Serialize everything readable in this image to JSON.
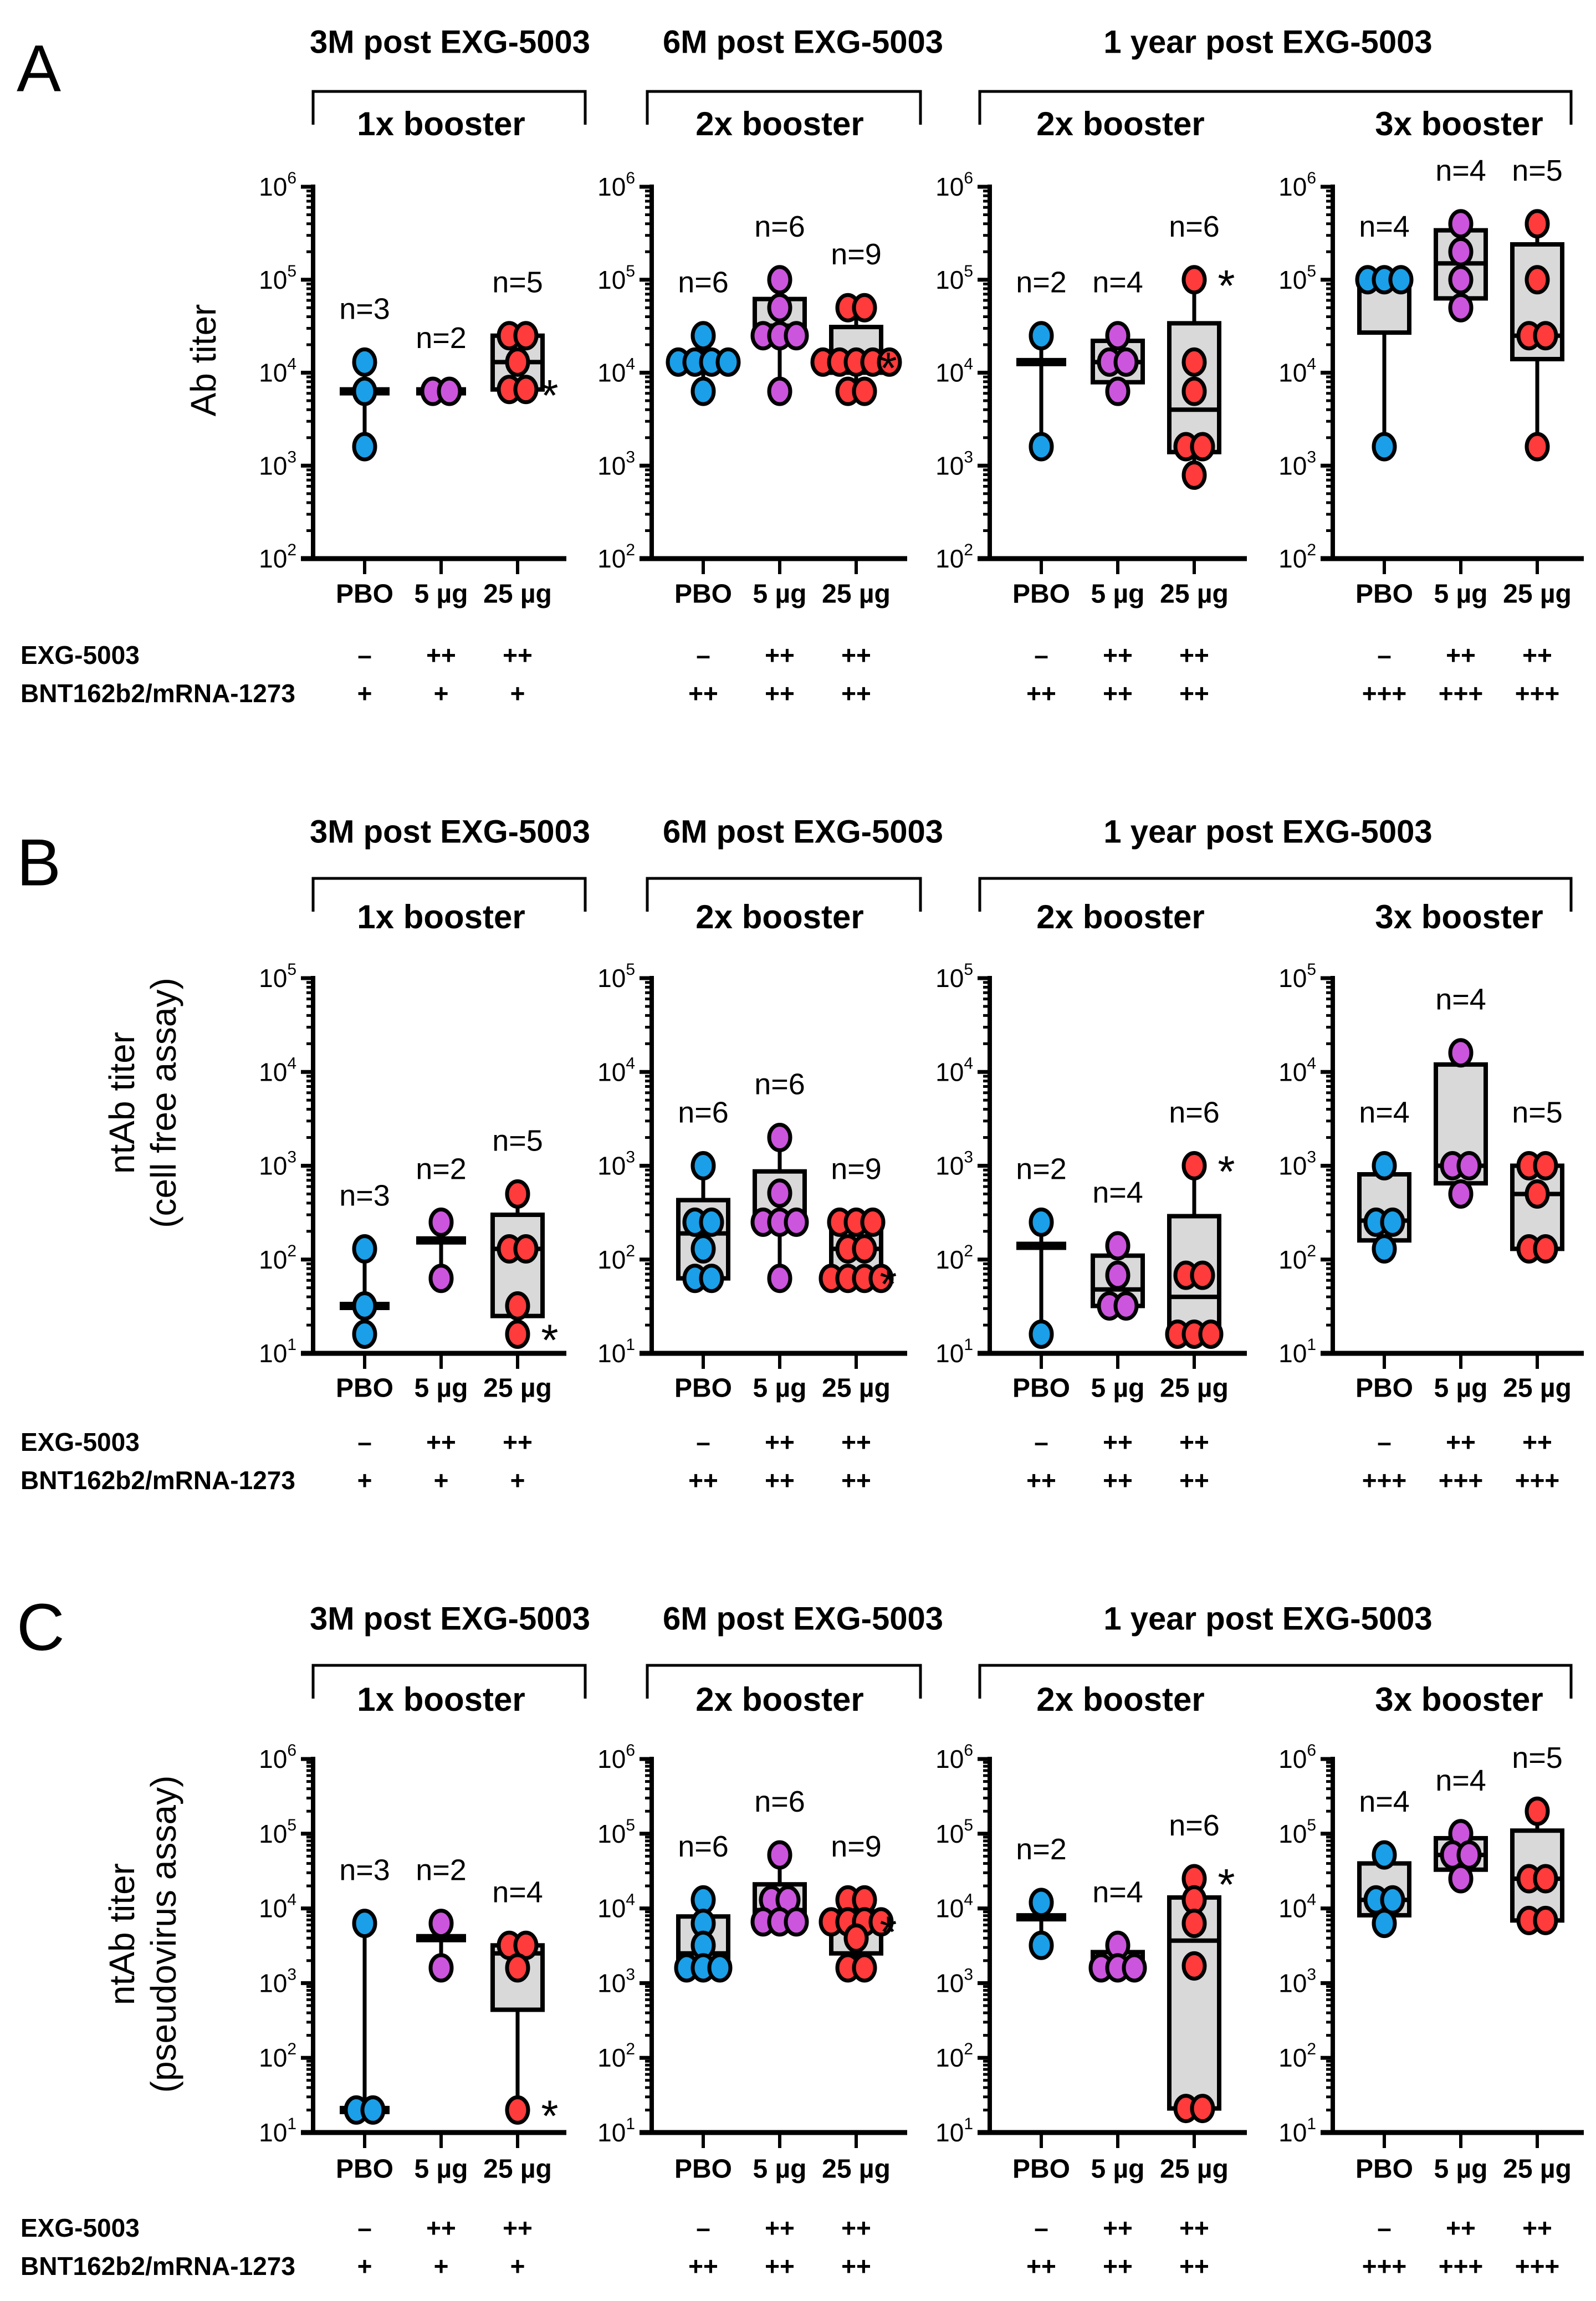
{
  "colors": {
    "PBO": "#1a9fe8",
    "5 µg": "#cc55dd",
    "25 µg": "#ff3b3b",
    "box_fill": "#d9d9d9"
  },
  "treatment_labels": [
    "EXG-5003",
    "BNT162b2/mRNA-1273"
  ],
  "rows": [
    {
      "label": "A",
      "ylabel": [
        "Ab titer"
      ],
      "headings": [
        "3M post EXG-5003",
        "6M post EXG-5003",
        "1 year post EXG-5003"
      ],
      "boosters": [
        "1x booster",
        "2x booster",
        "2x booster",
        "3x booster"
      ]
    },
    {
      "label": "B",
      "ylabel": [
        "ntAb titer",
        "(cell free assay)"
      ],
      "headings": [
        "3M post EXG-5003",
        "6M post EXG-5003",
        "1 year post EXG-5003"
      ],
      "boosters": [
        "1x booster",
        "2x booster",
        "2x booster",
        "3x booster"
      ]
    },
    {
      "label": "C",
      "ylabel": [
        "ntAb titer",
        "(pseudovirus assay)"
      ],
      "headings": [
        "3M post EXG-5003",
        "6M post EXG-5003",
        "1 year post EXG-5003"
      ],
      "boosters": [
        "1x booster",
        "2x booster",
        "2x booster",
        "3x booster"
      ]
    }
  ],
  "chart_data": [
    {
      "type": "box",
      "row": "A",
      "panel": "3M post EXG-5003 / 1x booster",
      "yscale": "log",
      "ylim": [
        100,
        1000000
      ],
      "ylabel": "Ab titer",
      "categories": [
        "PBO",
        "5 µg",
        "25 µg"
      ],
      "exg": [
        "–",
        "++",
        "++"
      ],
      "bnt": [
        "+",
        "+",
        "+"
      ],
      "groups": [
        {
          "name": "PBO",
          "n_label": "n=3",
          "values": [
            13000,
            6300,
            1600
          ],
          "median": 6300,
          "box": false
        },
        {
          "name": "5 µg",
          "n_label": "n=2",
          "values": [
            6300,
            6300
          ],
          "median": 6300,
          "box": false
        },
        {
          "name": "25 µg",
          "n_label": "n=5",
          "values": [
            25000,
            25000,
            13000,
            6600,
            6600
          ],
          "q1": 6600,
          "median": 13000,
          "q3": 25000,
          "box": true,
          "asterisk_at": 6600
        }
      ]
    },
    {
      "type": "box",
      "row": "A",
      "panel": "6M post EXG-5003 / 2x booster",
      "yscale": "log",
      "ylim": [
        100,
        1000000
      ],
      "ylabel": "Ab titer",
      "categories": [
        "PBO",
        "5 µg",
        "25 µg"
      ],
      "exg": [
        "–",
        "++",
        "++"
      ],
      "bnt": [
        "++",
        "++",
        "++"
      ],
      "groups": [
        {
          "name": "PBO",
          "n_label": "n=6",
          "values": [
            25000,
            13000,
            13000,
            13000,
            13000,
            6300
          ],
          "q1": 13000,
          "median": 13000,
          "q3": 13000,
          "box": true
        },
        {
          "name": "5 µg",
          "n_label": "n=6",
          "values": [
            100000,
            50000,
            25000,
            25000,
            25000,
            6300
          ],
          "q1": 25000,
          "median": 32000,
          "q3": 62000,
          "box": true
        },
        {
          "name": "25 µg",
          "n_label": "n=9",
          "values": [
            50000,
            50000,
            13000,
            13000,
            13000,
            13000,
            13000,
            6300,
            6300
          ],
          "q1": 10000,
          "median": 13000,
          "q3": 31000,
          "box": true,
          "asterisk_at": 13000
        }
      ]
    },
    {
      "type": "box",
      "row": "A",
      "panel": "1 year post EXG-5003 / 2x booster",
      "yscale": "log",
      "ylim": [
        100,
        1000000
      ],
      "ylabel": "Ab titer",
      "categories": [
        "PBO",
        "5 µg",
        "25 µg"
      ],
      "exg": [
        "–",
        "++",
        "++"
      ],
      "bnt": [
        "++",
        "++",
        "++"
      ],
      "groups": [
        {
          "name": "PBO",
          "n_label": "n=2",
          "values": [
            25000,
            1600
          ],
          "median": 13000,
          "box": false
        },
        {
          "name": "5 µg",
          "n_label": "n=4",
          "values": [
            25000,
            13000,
            13000,
            6300
          ],
          "q1": 7900,
          "median": 13000,
          "q3": 22000,
          "box": true
        },
        {
          "name": "25 µg",
          "n_label": "n=6",
          "values": [
            100000,
            13000,
            6300,
            1600,
            1600,
            790
          ],
          "q1": 1400,
          "median": 4000,
          "q3": 34000,
          "box": true,
          "asterisk_at": 100000
        }
      ]
    },
    {
      "type": "box",
      "row": "A",
      "panel": "1 year post EXG-5003 / 3x booster",
      "yscale": "log",
      "ylim": [
        100,
        1000000
      ],
      "ylabel": "Ab titer",
      "categories": [
        "PBO",
        "5 µg",
        "25 µg"
      ],
      "exg": [
        "–",
        "++",
        "++"
      ],
      "bnt": [
        "+++",
        "+++",
        "+++"
      ],
      "groups": [
        {
          "name": "PBO",
          "n_label": "n=4",
          "values": [
            100000,
            100000,
            100000,
            1600
          ],
          "q1": 27000,
          "median": 100000,
          "q3": 100000,
          "box": true
        },
        {
          "name": "5 µg",
          "n_label": "n=4",
          "values": [
            400000,
            200000,
            100000,
            50000
          ],
          "q1": 63000,
          "median": 150000,
          "q3": 340000,
          "box": true
        },
        {
          "name": "25 µg",
          "n_label": "n=5",
          "values": [
            400000,
            100000,
            25000,
            25000,
            1600
          ],
          "q1": 14000,
          "median": 25000,
          "q3": 240000,
          "box": true
        }
      ]
    },
    {
      "type": "box",
      "row": "B",
      "panel": "3M post EXG-5003 / 1x booster",
      "yscale": "log",
      "ylim": [
        10,
        100000
      ],
      "ylabel": "ntAb titer (cell free assay)",
      "categories": [
        "PBO",
        "5 µg",
        "25 µg"
      ],
      "exg": [
        "–",
        "++",
        "++"
      ],
      "bnt": [
        "+",
        "+",
        "+"
      ],
      "groups": [
        {
          "name": "PBO",
          "n_label": "n=3",
          "values": [
            130,
            32,
            16
          ],
          "median": 32,
          "box": false
        },
        {
          "name": "5 µg",
          "n_label": "n=2",
          "values": [
            250,
            63
          ],
          "median": 160,
          "box": false
        },
        {
          "name": "25 µg",
          "n_label": "n=5",
          "values": [
            500,
            130,
            130,
            32,
            16
          ],
          "q1": 25,
          "median": 130,
          "q3": 300,
          "box": true,
          "asterisk_at": 16
        }
      ]
    },
    {
      "type": "box",
      "row": "B",
      "panel": "6M post EXG-5003 / 2x booster",
      "yscale": "log",
      "ylim": [
        10,
        100000
      ],
      "ylabel": "ntAb titer (cell free assay)",
      "categories": [
        "PBO",
        "5 µg",
        "25 µg"
      ],
      "exg": [
        "–",
        "++",
        "++"
      ],
      "bnt": [
        "++",
        "++",
        "++"
      ],
      "groups": [
        {
          "name": "PBO",
          "n_label": "n=6",
          "values": [
            1000,
            250,
            250,
            130,
            63,
            63
          ],
          "q1": 63,
          "median": 190,
          "q3": 430,
          "box": true
        },
        {
          "name": "5 µg",
          "n_label": "n=6",
          "values": [
            2000,
            510,
            250,
            250,
            250,
            63
          ],
          "q1": 250,
          "median": 250,
          "q3": 870,
          "box": true
        },
        {
          "name": "25 µg",
          "n_label": "n=9",
          "values": [
            250,
            250,
            250,
            130,
            130,
            63,
            63,
            63,
            63
          ],
          "q1": 63,
          "median": 130,
          "q3": 250,
          "box": true,
          "asterisk_at": 63
        }
      ]
    },
    {
      "type": "box",
      "row": "B",
      "panel": "1 year post EXG-5003 / 2x booster",
      "yscale": "log",
      "ylim": [
        10,
        100000
      ],
      "ylabel": "ntAb titer (cell free assay)",
      "categories": [
        "PBO",
        "5 µg",
        "25 µg"
      ],
      "exg": [
        "–",
        "++",
        "++"
      ],
      "bnt": [
        "++",
        "++",
        "++"
      ],
      "groups": [
        {
          "name": "PBO",
          "n_label": "n=2",
          "values": [
            250,
            16
          ],
          "median": 140,
          "box": false
        },
        {
          "name": "5 µg",
          "n_label": "n=4",
          "values": [
            140,
            68,
            32,
            32
          ],
          "q1": 32,
          "median": 48,
          "q3": 110,
          "box": true
        },
        {
          "name": "25 µg",
          "n_label": "n=6",
          "values": [
            1000,
            68,
            68,
            16,
            16,
            16
          ],
          "q1": 16,
          "median": 40,
          "q3": 290,
          "box": true,
          "asterisk_at": 1000
        }
      ]
    },
    {
      "type": "box",
      "row": "B",
      "panel": "1 year post EXG-5003 / 3x booster",
      "yscale": "log",
      "ylim": [
        10,
        100000
      ],
      "ylabel": "ntAb titer (cell free assay)",
      "categories": [
        "PBO",
        "5 µg",
        "25 µg"
      ],
      "exg": [
        "–",
        "++",
        "++"
      ],
      "bnt": [
        "+++",
        "+++",
        "+++"
      ],
      "groups": [
        {
          "name": "PBO",
          "n_label": "n=4",
          "values": [
            1000,
            250,
            250,
            130
          ],
          "q1": 160,
          "median": 260,
          "q3": 810,
          "box": true
        },
        {
          "name": "5 µg",
          "n_label": "n=4",
          "values": [
            16000,
            1000,
            1000,
            500
          ],
          "q1": 650,
          "median": 1000,
          "q3": 12000,
          "box": true
        },
        {
          "name": "25 µg",
          "n_label": "n=5",
          "values": [
            1000,
            1000,
            500,
            130,
            130
          ],
          "q1": 130,
          "median": 500,
          "q3": 1000,
          "box": true
        }
      ]
    },
    {
      "type": "box",
      "row": "C",
      "panel": "3M post EXG-5003 / 1x booster",
      "yscale": "log",
      "ylim": [
        10,
        1000000
      ],
      "ylabel": "ntAb titer (pseudovirus assay)",
      "categories": [
        "PBO",
        "5 µg",
        "25 µg"
      ],
      "exg": [
        "–",
        "++",
        "++"
      ],
      "bnt": [
        "+",
        "+",
        "+"
      ],
      "groups": [
        {
          "name": "PBO",
          "n_label": "n=3",
          "values": [
            6300,
            20,
            20
          ],
          "median": 20,
          "box": false
        },
        {
          "name": "5 µg",
          "n_label": "n=2",
          "values": [
            6300,
            1600
          ],
          "median": 4000,
          "box": false
        },
        {
          "name": "25 µg",
          "n_label": "n=4",
          "values": [
            3200,
            3200,
            1600,
            20
          ],
          "q1": 440,
          "median": 2500,
          "q3": 3200,
          "box": true,
          "asterisk_at": 20
        }
      ]
    },
    {
      "type": "box",
      "row": "C",
      "panel": "6M post EXG-5003 / 2x booster",
      "yscale": "log",
      "ylim": [
        10,
        1000000
      ],
      "ylabel": "ntAb titer (pseudovirus assay)",
      "categories": [
        "PBO",
        "5 µg",
        "25 µg"
      ],
      "exg": [
        "–",
        "++",
        "++"
      ],
      "bnt": [
        "++",
        "++",
        "++"
      ],
      "groups": [
        {
          "name": "PBO",
          "n_label": "n=6",
          "values": [
            13000,
            6300,
            3200,
            1600,
            1600,
            1600
          ],
          "q1": 1600,
          "median": 2500,
          "q3": 7800,
          "box": true
        },
        {
          "name": "5 µg",
          "n_label": "n=6",
          "values": [
            52000,
            13000,
            13000,
            6600,
            6600,
            6600
          ],
          "q1": 6200,
          "median": 9500,
          "q3": 21000,
          "box": true
        },
        {
          "name": "25 µg",
          "n_label": "n=9",
          "values": [
            13000,
            13000,
            6600,
            6600,
            6600,
            6600,
            4000,
            1600,
            1600
          ],
          "q1": 2500,
          "median": 5800,
          "q3": 9100,
          "box": true,
          "asterisk_at": 5800
        }
      ]
    },
    {
      "type": "box",
      "row": "C",
      "panel": "1 year post EXG-5003 / 2x booster",
      "yscale": "log",
      "ylim": [
        10,
        1000000
      ],
      "ylabel": "ntAb titer (pseudovirus assay)",
      "categories": [
        "PBO",
        "5 µg",
        "25 µg"
      ],
      "exg": [
        "–",
        "++",
        "++"
      ],
      "bnt": [
        "++",
        "++",
        "++"
      ],
      "groups": [
        {
          "name": "PBO",
          "n_label": "n=2",
          "values": [
            12000,
            3200
          ],
          "median": 7600,
          "box": false
        },
        {
          "name": "5 µg",
          "n_label": "n=4",
          "values": [
            3200,
            1600,
            1600,
            1600
          ],
          "q1": 1600,
          "median": 2000,
          "q3": 2600,
          "box": true
        },
        {
          "name": "25 µg",
          "n_label": "n=6",
          "values": [
            25000,
            13000,
            6300,
            1700,
            21,
            21
          ],
          "q1": 21,
          "median": 3700,
          "q3": 14000,
          "box": true,
          "asterisk_at": 25000
        }
      ]
    },
    {
      "type": "box",
      "row": "C",
      "panel": "1 year post EXG-5003 / 3x booster",
      "yscale": "log",
      "ylim": [
        10,
        1000000
      ],
      "ylabel": "ntAb titer (pseudovirus assay)",
      "categories": [
        "PBO",
        "5 µg",
        "25 µg"
      ],
      "exg": [
        "–",
        "++",
        "++"
      ],
      "bnt": [
        "+++",
        "+++",
        "+++"
      ],
      "groups": [
        {
          "name": "PBO",
          "n_label": "n=4",
          "values": [
            52000,
            13000,
            13000,
            6300
          ],
          "q1": 8100,
          "median": 13000,
          "q3": 40000,
          "box": true
        },
        {
          "name": "5 µg",
          "n_label": "n=4",
          "values": [
            100000,
            52000,
            52000,
            25000
          ],
          "q1": 33000,
          "median": 52000,
          "q3": 87000,
          "box": true
        },
        {
          "name": "25 µg",
          "n_label": "n=5",
          "values": [
            200000,
            25000,
            25000,
            6900,
            6900
          ],
          "q1": 6900,
          "median": 25000,
          "q3": 110000,
          "box": true
        }
      ]
    }
  ]
}
